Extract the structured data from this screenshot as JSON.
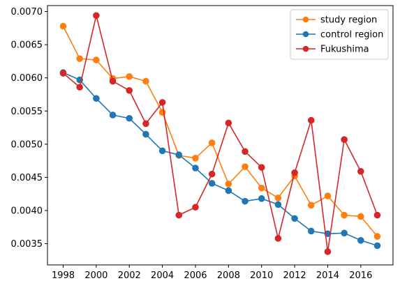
{
  "chart_data": {
    "type": "line",
    "title": "",
    "xlabel": "",
    "ylabel": "",
    "x": [
      1998,
      1999,
      2000,
      2001,
      2002,
      2003,
      2004,
      2005,
      2006,
      2007,
      2008,
      2009,
      2010,
      2011,
      2012,
      2013,
      2014,
      2015,
      2016,
      2017
    ],
    "xlim": [
      1997.05,
      2017.95
    ],
    "ylim": [
      0.00318,
      0.00709
    ],
    "xticks": [
      1998,
      2000,
      2002,
      2004,
      2006,
      2008,
      2010,
      2012,
      2014,
      2016
    ],
    "xtick_labels": [
      "1998",
      "2000",
      "2002",
      "2004",
      "2006",
      "2008",
      "2010",
      "2012",
      "2014",
      "2016"
    ],
    "yticks": [
      0.0035,
      0.004,
      0.0045,
      0.005,
      0.0055,
      0.006,
      0.0065,
      0.007
    ],
    "ytick_labels": [
      "0.0035",
      "0.0040",
      "0.0045",
      "0.0050",
      "0.0055",
      "0.0060",
      "0.0065",
      "0.0070"
    ],
    "grid": false,
    "legend": {
      "position": "top-right"
    },
    "series": [
      {
        "name": "study region",
        "color": "#ff7f0e",
        "values": [
          0.00678,
          0.00629,
          0.00627,
          0.00599,
          0.00602,
          0.00595,
          0.00548,
          0.00483,
          0.00479,
          0.00502,
          0.0044,
          0.00466,
          0.00434,
          0.00419,
          0.00452,
          0.00408,
          0.00422,
          0.00393,
          0.00391,
          0.00361
        ]
      },
      {
        "name": "control region",
        "color": "#1f77b4",
        "values": [
          0.00608,
          0.00597,
          0.00569,
          0.00544,
          0.00539,
          0.00515,
          0.0049,
          0.00484,
          0.00464,
          0.00441,
          0.0043,
          0.00414,
          0.00418,
          0.00409,
          0.00388,
          0.00369,
          0.00365,
          0.00366,
          0.00355,
          0.00347
        ]
      },
      {
        "name": "Fukushima",
        "color": "#d62728",
        "values": [
          0.00607,
          0.00586,
          0.00694,
          0.00595,
          0.00581,
          0.00531,
          0.00563,
          0.00393,
          0.00405,
          0.00455,
          0.00532,
          0.00489,
          0.00465,
          0.00358,
          0.00457,
          0.00536,
          0.00338,
          0.00507,
          0.00459,
          0.00393
        ]
      }
    ]
  }
}
